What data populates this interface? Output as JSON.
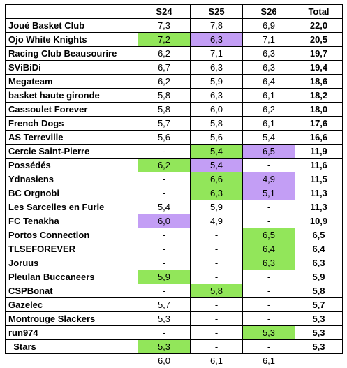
{
  "table": {
    "header": [
      "S24",
      "S25",
      "S26",
      "Total"
    ],
    "groups": [
      {
        "rows": [
          {
            "team": "Joué Basket Club",
            "cells": [
              "7,3",
              "7,8",
              "6,9",
              "22,0"
            ]
          },
          {
            "team": "Ojo White Knights",
            "cells": [
              {
                "text": "7,2",
                "fill": "#92e65a"
              },
              {
                "text": "6,3",
                "fill": "#c39ef5"
              },
              "7,1",
              "20,5"
            ]
          },
          {
            "team": "Racing Club Beausourire",
            "cells": [
              "6,2",
              "7,1",
              "6,3",
              "19,7"
            ]
          },
          {
            "team": "SViBiDi",
            "cells": [
              "6,7",
              "6,3",
              "6,3",
              "19,4"
            ]
          },
          {
            "team": "Megateam",
            "cells": [
              "6,2",
              "5,9",
              "6,4",
              "18,6"
            ]
          },
          {
            "team": "basket haute gironde",
            "cells": [
              "5,8",
              "6,3",
              "6,1",
              "18,2"
            ]
          },
          {
            "team": "Cassoulet Forever",
            "cells": [
              "5,8",
              "6,0",
              "6,2",
              "18,0"
            ]
          },
          {
            "team": "French Dogs",
            "cells": [
              "5,7",
              "5,8",
              "6,1",
              "17,6"
            ]
          },
          {
            "team": "AS Terreville",
            "cells": [
              "5,6",
              "5,6",
              "5,4",
              "16,6"
            ]
          }
        ]
      },
      {
        "rows": [
          {
            "team": "Cercle Saint-Pierre",
            "cells": [
              "-",
              {
                "text": "5,4",
                "fill": "#92e65a"
              },
              {
                "text": "6,5",
                "fill": "#c39ef5"
              },
              "11,9"
            ]
          },
          {
            "team": "Possédés",
            "cells": [
              {
                "text": "6,2",
                "fill": "#92e65a"
              },
              {
                "text": "5,4",
                "fill": "#c39ef5"
              },
              "-",
              "11,6"
            ]
          },
          {
            "team": "Ydnasiens",
            "cells": [
              "-",
              {
                "text": "6,6",
                "fill": "#92e65a"
              },
              {
                "text": "4,9",
                "fill": "#c39ef5"
              },
              "11,5"
            ]
          },
          {
            "team": "BC Orgnobi",
            "cells": [
              "-",
              {
                "text": "6,3",
                "fill": "#92e65a"
              },
              {
                "text": "5,1",
                "fill": "#c39ef5"
              },
              "11,3"
            ]
          },
          {
            "team": "Les Sarcelles en Furie",
            "cells": [
              "5,4",
              "5,9",
              "-",
              "11,3"
            ]
          },
          {
            "team": "FC Tenakha",
            "cells": [
              {
                "text": "6,0",
                "fill": "#c39ef5"
              },
              "4,9",
              "-",
              "10,9"
            ]
          }
        ]
      },
      {
        "rows": [
          {
            "team": "Portos Connection",
            "cells": [
              "-",
              "-",
              {
                "text": "6,5",
                "fill": "#92e65a"
              },
              "6,5"
            ]
          },
          {
            "team": "TLSEFOREVER",
            "cells": [
              "-",
              "-",
              {
                "text": "6,4",
                "fill": "#92e65a"
              },
              "6,4"
            ]
          },
          {
            "team": "Joruus",
            "cells": [
              "-",
              "-",
              {
                "text": "6,3",
                "fill": "#92e65a"
              },
              "6,3"
            ]
          },
          {
            "team": "Pleulan Buccaneers",
            "cells": [
              {
                "text": "5,9",
                "fill": "#92e65a"
              },
              "-",
              "-",
              "5,9"
            ]
          },
          {
            "team": "CSPBonat",
            "cells": [
              "-",
              {
                "text": "5,8",
                "fill": "#92e65a"
              },
              "-",
              "5,8"
            ]
          },
          {
            "team": "Gazelec",
            "cells": [
              "5,7",
              "-",
              "-",
              "5,7"
            ]
          },
          {
            "team": "Montrouge Slackers",
            "cells": [
              "5,3",
              "-",
              "-",
              "5,3"
            ]
          },
          {
            "team": "run974",
            "cells": [
              "-",
              "-",
              {
                "text": "5,3",
                "fill": "#92e65a"
              },
              "5,3"
            ]
          },
          {
            "team": "_Stars_",
            "cells": [
              {
                "text": "5,3",
                "fill": "#92e65a"
              },
              "-",
              "-",
              "5,3"
            ]
          }
        ]
      }
    ],
    "footer": [
      "6,0",
      "6,1",
      "6,1"
    ]
  }
}
